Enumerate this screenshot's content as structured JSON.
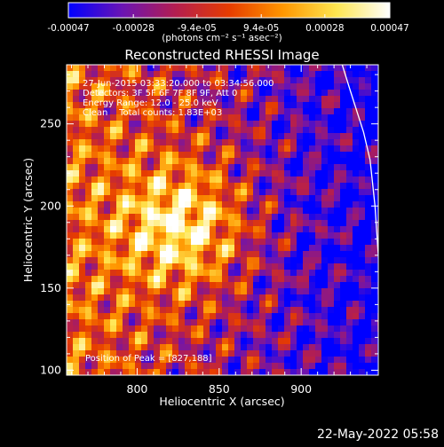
{
  "chart_data": {
    "type": "heatmap",
    "title": "Reconstructed RHESSI Image",
    "xlabel": "Heliocentric X (arcsec)",
    "ylabel": "Heliocentric Y (arcsec)",
    "xlim": [
      757,
      947
    ],
    "ylim": [
      97,
      286
    ],
    "x_ticks": [
      800,
      850,
      900
    ],
    "y_ticks": [
      100,
      150,
      200,
      250
    ],
    "colorbar": {
      "unit_label": "(photons cm⁻² s⁻¹ asec⁻²)",
      "range": [
        -0.00047,
        0.00047
      ],
      "tick_values": [
        -0.00047,
        -0.00028,
        -9.4e-05,
        9.4e-05,
        0.00028,
        0.00047
      ],
      "tick_labels": [
        "-0.00047",
        "-0.00028",
        "-9.4e-05",
        "9.4e-05",
        "0.00028",
        "0.00047"
      ],
      "colors": [
        "#0000ff",
        "#6a14b4",
        "#b41e50",
        "#e63c00",
        "#ff9600",
        "#ffe650",
        "#ffffff"
      ]
    },
    "annotations": [
      "27-Jun-2015 03:33:20.000 to 03:34:56.000",
      "Detectors: 3F 5F 6F 7F 8F 9F, Att 0",
      "Energy Range: 12.0 - 25.0 keV",
      "Clean    Total counts: 1.83E+03"
    ],
    "peak_label": "Position of Peak = [827,188]",
    "peak_position": [
      827,
      188
    ],
    "limb_curve": [
      [
        925,
        286
      ],
      [
        930,
        270
      ],
      [
        938,
        245
      ],
      [
        942,
        228
      ],
      [
        945,
        200
      ],
      [
        947,
        170
      ],
      [
        948,
        140
      ],
      [
        949,
        110
      ],
      [
        949,
        97
      ]
    ],
    "footer_date": "22-May-2022 05:58",
    "grid": false
  }
}
